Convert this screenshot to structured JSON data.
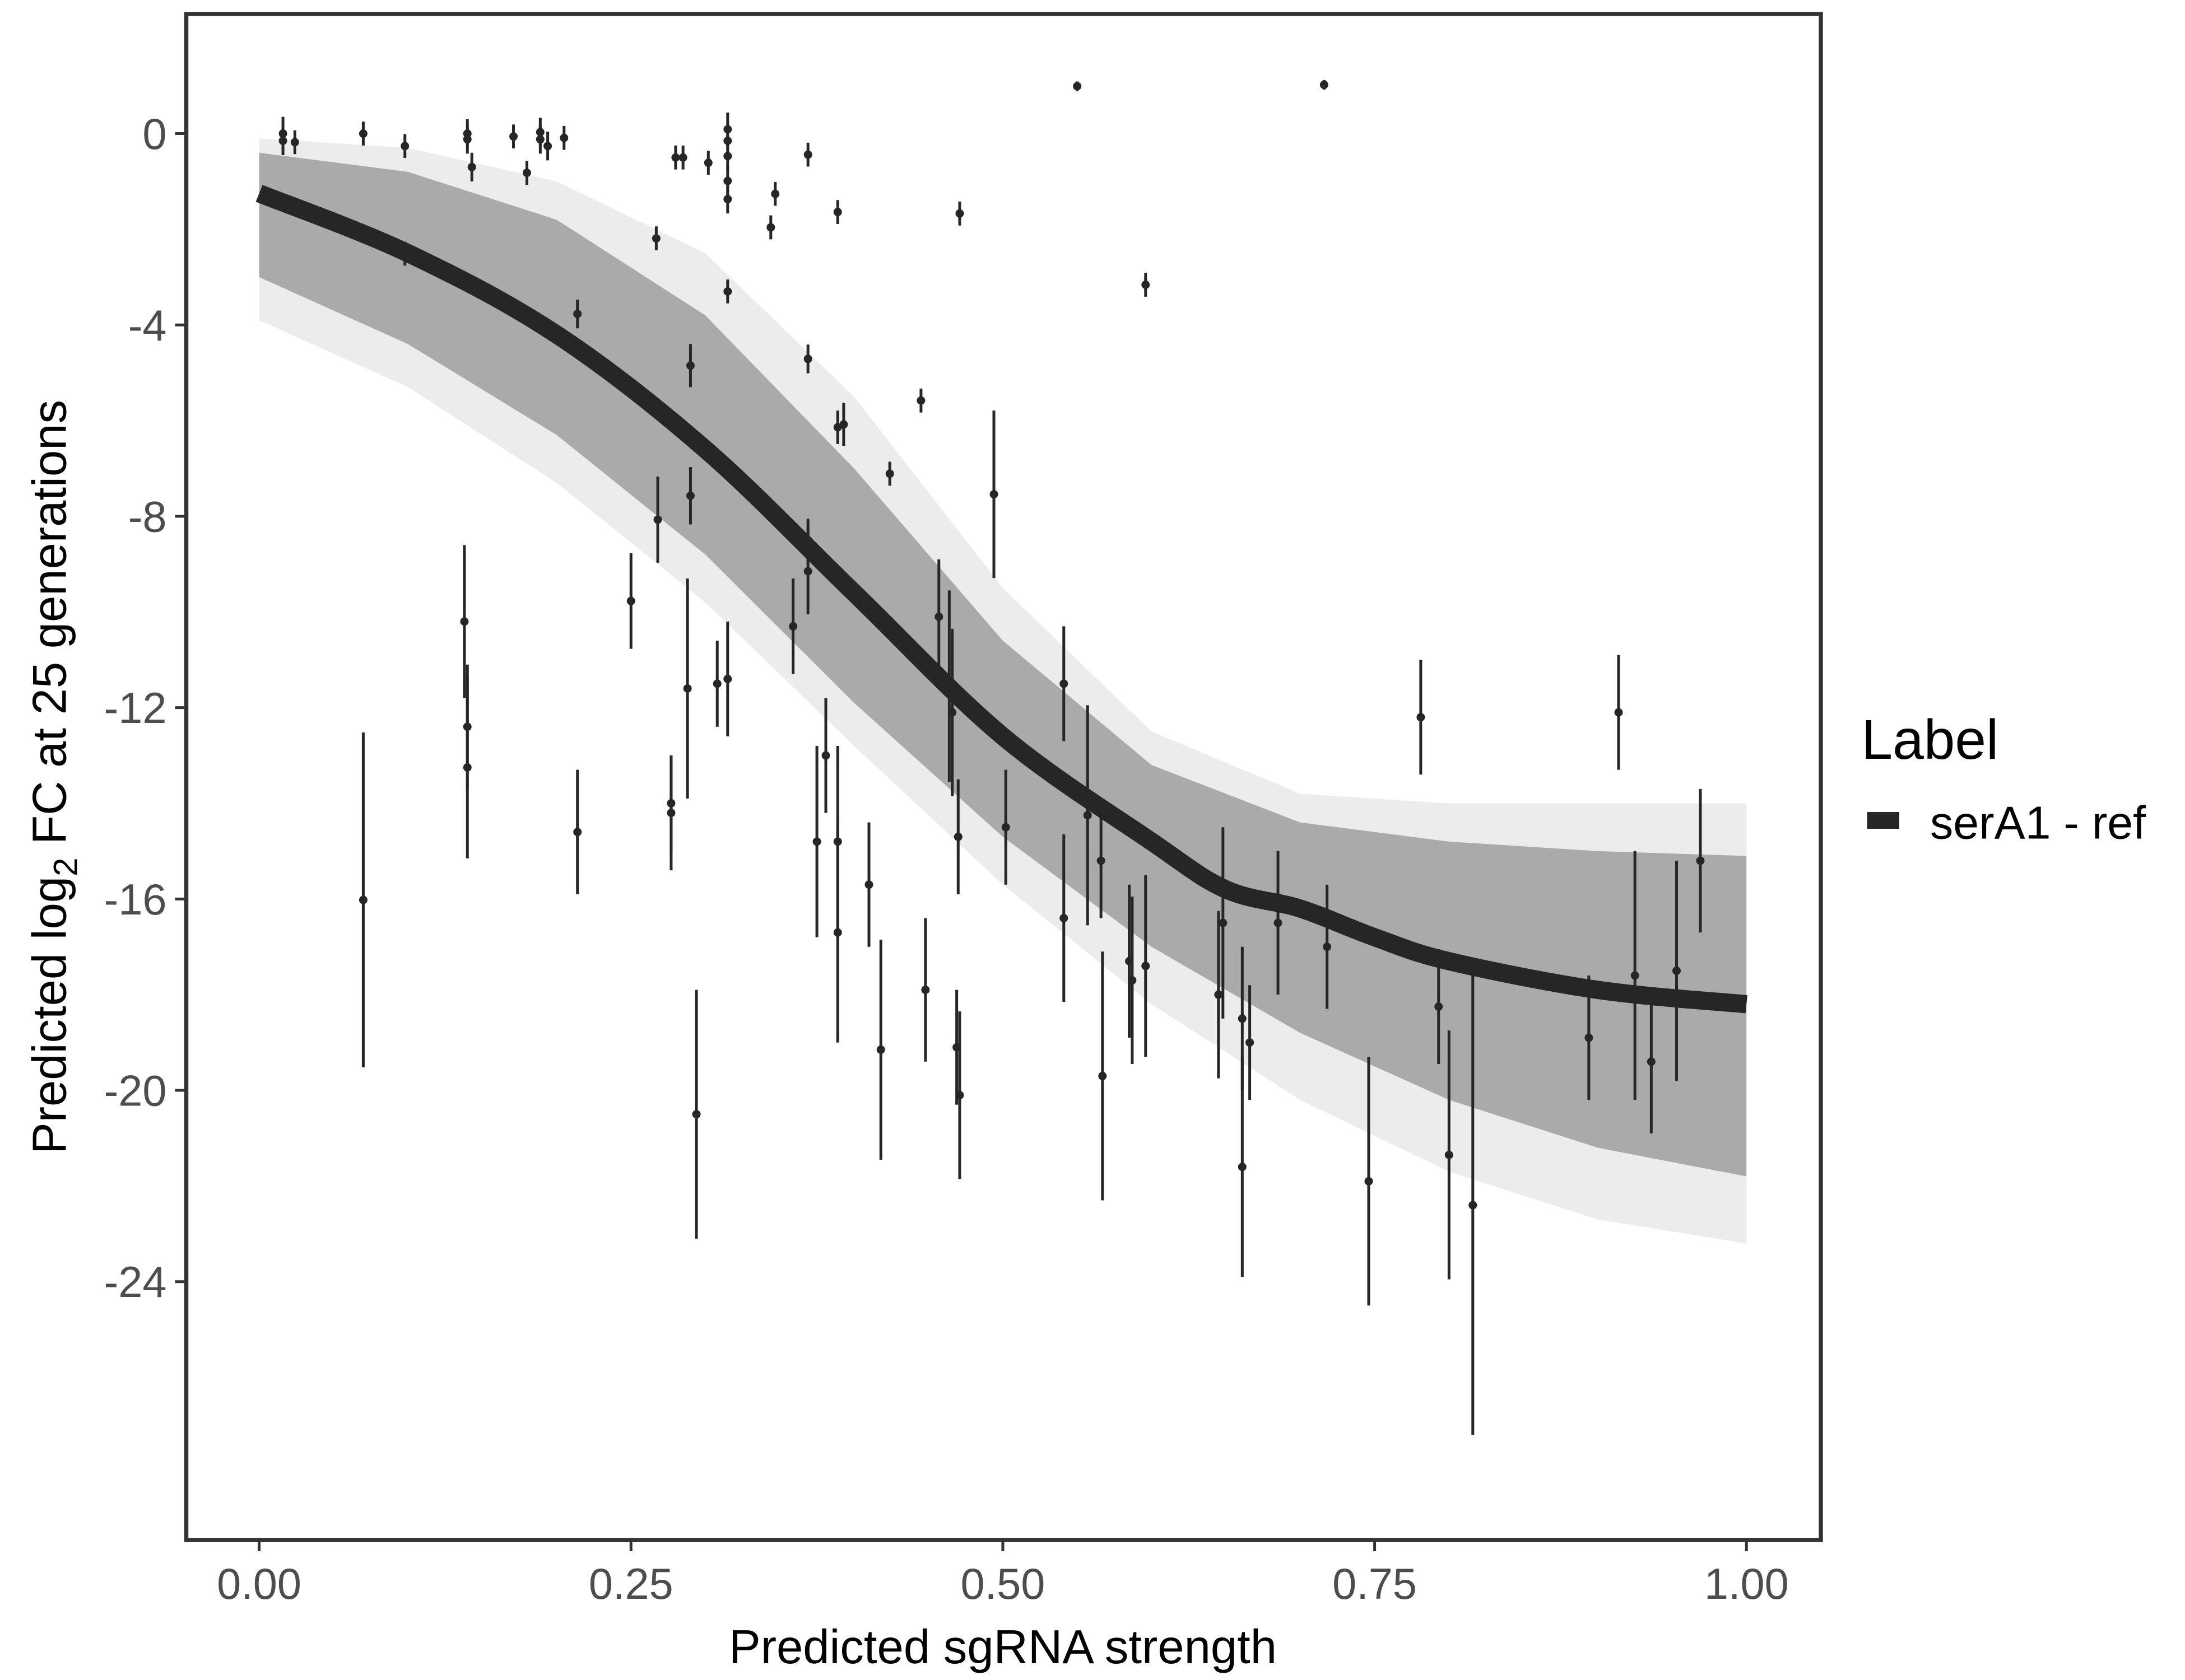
{
  "chart_data": {
    "type": "scatter",
    "title": "",
    "xlabel": "Predicted sgRNA strength",
    "ylabel": {
      "pre": "Predicted  log",
      "sub": "2",
      "post": " FC at 25 generations"
    },
    "xlim": [
      -0.049,
      1.05
    ],
    "ylim": [
      -29.4,
      2.5
    ],
    "xticks": [
      0,
      0.25,
      0.5,
      0.75,
      1.0
    ],
    "xtick_labels": [
      "0.00",
      "0.25",
      "0.50",
      "0.75",
      "1.00"
    ],
    "yticks": [
      0,
      -4,
      -8,
      -12,
      -16,
      -20,
      -24
    ],
    "ytick_labels": [
      "0",
      "-4",
      "-8",
      "-12",
      "-16",
      "-20",
      "-24"
    ],
    "grid": false,
    "legend": {
      "title": "Label",
      "placement": "right",
      "entries": [
        {
          "label": "serA1 - ref",
          "color": "#262626"
        }
      ]
    },
    "colors": {
      "fit": "#262626",
      "band_outer": "#ececec",
      "band_inner": "#aaaaaa",
      "points": "#262626",
      "frame": "#333333"
    },
    "fit_curve": {
      "x": [
        0,
        0.1,
        0.2,
        0.3,
        0.4,
        0.5,
        0.6,
        0.65,
        0.7,
        0.75,
        0.8,
        0.9,
        1.0
      ],
      "y": [
        -1.25,
        -2.5,
        -4.2,
        -6.6,
        -9.6,
        -12.6,
        -14.8,
        -15.8,
        -16.2,
        -16.8,
        -17.3,
        -17.9,
        -18.2
      ]
    },
    "posterior_band_outer": {
      "x": [
        0,
        0.1,
        0.2,
        0.3,
        0.4,
        0.5,
        0.6,
        0.7,
        0.8,
        0.9,
        1.0
      ],
      "upper": [
        -0.1,
        -0.3,
        -1.0,
        -2.5,
        -5.5,
        -9.5,
        -12.5,
        -13.8,
        -14.0,
        -14.0,
        -14.0
      ],
      "lower": [
        -3.9,
        -5.3,
        -7.3,
        -9.8,
        -12.8,
        -15.7,
        -18.2,
        -20.2,
        -21.7,
        -22.7,
        -23.2
      ]
    },
    "posterior_band_inner": {
      "x": [
        0,
        0.1,
        0.2,
        0.3,
        0.4,
        0.5,
        0.6,
        0.7,
        0.8,
        0.9,
        1.0
      ],
      "upper": [
        -0.4,
        -0.8,
        -1.8,
        -3.8,
        -7.0,
        -10.6,
        -13.2,
        -14.4,
        -14.8,
        -15.0,
        -15.1
      ],
      "lower": [
        -3.0,
        -4.4,
        -6.3,
        -8.8,
        -11.9,
        -14.7,
        -17.0,
        -18.8,
        -20.2,
        -21.2,
        -21.8
      ]
    },
    "points": [
      [
        0.016,
        0,
        0.35
      ],
      [
        0.016,
        -0.15,
        0.3
      ],
      [
        0.024,
        -0.18,
        0.25
      ],
      [
        0.07,
        0,
        0.25
      ],
      [
        0.098,
        -0.26,
        0.25
      ],
      [
        0.14,
        0,
        0.3
      ],
      [
        0.14,
        -0.12,
        0.3
      ],
      [
        0.143,
        -0.7,
        0.3
      ],
      [
        0.171,
        -0.06,
        0.25
      ],
      [
        0.18,
        -0.82,
        0.25
      ],
      [
        0.189,
        0.03,
        0.3
      ],
      [
        0.189,
        -0.12,
        0.3
      ],
      [
        0.194,
        -0.26,
        0.3
      ],
      [
        0.205,
        -0.09,
        0.25
      ],
      [
        0.098,
        -2.51,
        0.25
      ],
      [
        0.214,
        -3.77,
        0.3
      ],
      [
        0.267,
        -2.19,
        0.25
      ],
      [
        0.28,
        -0.5,
        0.25
      ],
      [
        0.285,
        -0.5,
        0.25
      ],
      [
        0.302,
        -0.61,
        0.25
      ],
      [
        0.315,
        0.09,
        0.35
      ],
      [
        0.315,
        -0.15,
        0.3
      ],
      [
        0.315,
        -0.47,
        0.3
      ],
      [
        0.315,
        -0.99,
        0.3
      ],
      [
        0.315,
        -1.37,
        0.3
      ],
      [
        0.315,
        -3.3,
        0.25
      ],
      [
        0.344,
        -1.96,
        0.25
      ],
      [
        0.347,
        -1.26,
        0.25
      ],
      [
        0.369,
        -0.44,
        0.25
      ],
      [
        0.369,
        -4.71,
        0.3
      ],
      [
        0.389,
        -1.64,
        0.25
      ],
      [
        0.389,
        -6.14,
        0.35
      ],
      [
        0.393,
        -6.08,
        0.45
      ],
      [
        0.424,
        -7.11,
        0.25
      ],
      [
        0.445,
        -5.58,
        0.25
      ],
      [
        0.471,
        -1.67,
        0.25
      ],
      [
        0.494,
        -7.54,
        1.75
      ],
      [
        0.55,
        0.99,
        0.1
      ],
      [
        0.596,
        -3.16,
        0.25
      ],
      [
        0.716,
        1.02,
        0.1
      ],
      [
        0.07,
        -16.02,
        3.5
      ],
      [
        0.138,
        -10.2,
        1.6
      ],
      [
        0.14,
        -12.4,
        1.3
      ],
      [
        0.14,
        -13.25,
        1.9
      ],
      [
        0.214,
        -14.6,
        1.3
      ],
      [
        0.25,
        -9.77,
        1.0
      ],
      [
        0.268,
        -8.07,
        0.9
      ],
      [
        0.277,
        -14.0,
        1.0
      ],
      [
        0.277,
        -14.2,
        1.2
      ],
      [
        0.288,
        -11.6,
        2.3
      ],
      [
        0.29,
        -7.57,
        0.6
      ],
      [
        0.29,
        -4.85,
        0.45
      ],
      [
        0.294,
        -20.5,
        2.6
      ],
      [
        0.308,
        -11.5,
        0.9
      ],
      [
        0.315,
        -11.4,
        1.2
      ],
      [
        0.359,
        -10.3,
        1.0
      ],
      [
        0.369,
        -9.15,
        0.9
      ],
      [
        0.369,
        -8.5,
        0.45
      ],
      [
        0.375,
        -14.8,
        2.0
      ],
      [
        0.381,
        -13.0,
        1.2
      ],
      [
        0.389,
        -14.8,
        2.0
      ],
      [
        0.389,
        -16.7,
        2.3
      ],
      [
        0.41,
        -15.7,
        1.3
      ],
      [
        0.418,
        -19.15,
        2.3
      ],
      [
        0.448,
        -17.9,
        1.5
      ],
      [
        0.457,
        -10.1,
        1.2
      ],
      [
        0.464,
        -11.55,
        2.0
      ],
      [
        0.466,
        -12.1,
        1.75
      ],
      [
        0.469,
        -19.1,
        1.2
      ],
      [
        0.47,
        -14.7,
        1.2
      ],
      [
        0.471,
        -20.1,
        1.75
      ],
      [
        0.502,
        -14.5,
        1.2
      ],
      [
        0.541,
        -16.4,
        1.75
      ],
      [
        0.541,
        -11.5,
        1.2
      ],
      [
        0.557,
        -14.25,
        2.3
      ],
      [
        0.566,
        -15.2,
        1.2
      ],
      [
        0.567,
        -19.7,
        2.6
      ],
      [
        0.585,
        -17.3,
        1.6
      ],
      [
        0.587,
        -17.7,
        1.75
      ],
      [
        0.596,
        -17.4,
        1.9
      ],
      [
        0.645,
        -18.0,
        1.75
      ],
      [
        0.648,
        -16.5,
        2.0
      ],
      [
        0.661,
        -18.5,
        1.5
      ],
      [
        0.661,
        -21.6,
        2.3
      ],
      [
        0.666,
        -19.0,
        1.2
      ],
      [
        0.685,
        -16.5,
        1.5
      ],
      [
        0.718,
        -17.0,
        1.3
      ],
      [
        0.746,
        -21.9,
        2.6
      ],
      [
        0.781,
        -12.2,
        1.2
      ],
      [
        0.793,
        -18.25,
        1.2
      ],
      [
        0.8,
        -21.35,
        2.6
      ],
      [
        0.816,
        -22.4,
        4.8
      ],
      [
        0.894,
        -18.9,
        1.3
      ],
      [
        0.914,
        -12.1,
        1.2
      ],
      [
        0.925,
        -17.6,
        2.6
      ],
      [
        0.936,
        -19.4,
        1.5
      ],
      [
        0.953,
        -17.5,
        2.3
      ],
      [
        0.969,
        -15.2,
        1.5
      ]
    ]
  }
}
